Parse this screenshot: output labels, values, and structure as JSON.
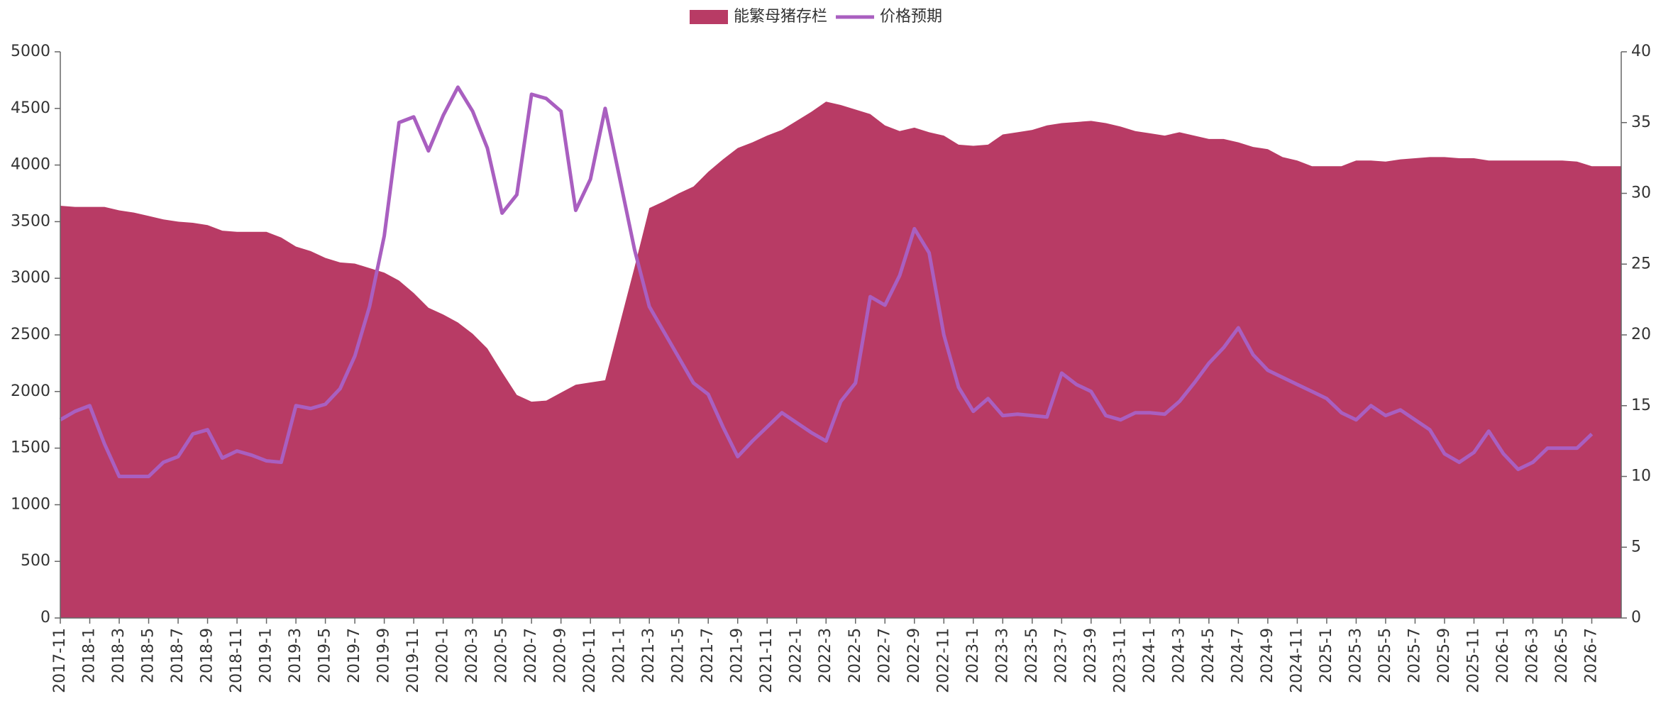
{
  "chart_data": {
    "type": "area",
    "categories": [
      "2017-11",
      null,
      "2018-1",
      null,
      "2018-3",
      null,
      "2018-5",
      null,
      "2018-7",
      null,
      "2018-9",
      null,
      "2018-11",
      null,
      "2019-1",
      null,
      "2019-3",
      null,
      "2019-5",
      null,
      "2019-7",
      null,
      "2019-9",
      null,
      "2019-11",
      null,
      "2020-1",
      null,
      "2020-3",
      null,
      "2020-5",
      null,
      "2020-7",
      null,
      "2020-9",
      null,
      "2020-11",
      null,
      "2021-1",
      null,
      "2021-3",
      null,
      "2021-5",
      null,
      "2021-7",
      null,
      "2021-9",
      null,
      "2021-11",
      null,
      "2022-1",
      null,
      "2022-3",
      null,
      "2022-5",
      null,
      "2022-7",
      null,
      "2022-9",
      null,
      "2022-11",
      null,
      "2023-1",
      null,
      "2023-3",
      null,
      "2023-5",
      null,
      "2023-7",
      null,
      "2023-9",
      null,
      "2023-11",
      null,
      "2024-1",
      null,
      "2024-3",
      null,
      "2024-5",
      null,
      "2024-7",
      null,
      "2024-9",
      null,
      "2024-11",
      null,
      "2025-1",
      null,
      "2025-3",
      null,
      "2025-5",
      null,
      "2025-7",
      null,
      "2025-9",
      null,
      "2025-11",
      null,
      "2026-1",
      null,
      "2026-3",
      null,
      "2026-5",
      null,
      "2026-7",
      null,
      null
    ],
    "series": [
      {
        "name": "能繁母猪存栏",
        "type": "area",
        "color": "#b83b65",
        "values": [
          3640,
          3630,
          3630,
          3630,
          3600,
          3580,
          3550,
          3520,
          3500,
          3490,
          3470,
          3420,
          3410,
          3410,
          3410,
          3360,
          3280,
          3240,
          3180,
          3140,
          3130,
          3090,
          3050,
          2980,
          2870,
          2740,
          2680,
          2610,
          2510,
          2380,
          2170,
          1970,
          1910,
          1920,
          1990,
          2060,
          2080,
          2100,
          2600,
          3100,
          3620,
          3680,
          3750,
          3810,
          3940,
          4050,
          4150,
          4200,
          4260,
          4310,
          4390,
          4470,
          4560,
          4530,
          4490,
          4450,
          4350,
          4300,
          4330,
          4290,
          4260,
          4180,
          4170,
          4180,
          4270,
          4290,
          4310,
          4350,
          4370,
          4380,
          4390,
          4370,
          4340,
          4300,
          4280,
          4260,
          4290,
          4260,
          4230,
          4230,
          4200,
          4160,
          4140,
          4070,
          4040,
          3990,
          3990,
          3990,
          4040,
          4040,
          4030,
          4050,
          4060,
          4070,
          4070,
          4060,
          4060,
          4040,
          4040,
          4040,
          4040,
          4040,
          4040,
          4030,
          3990,
          3990,
          3990
        ]
      },
      {
        "name": "价格预期",
        "type": "line",
        "axis": "y2",
        "color": "#a95fc0",
        "values": [
          14,
          14.6,
          15,
          12.3,
          10,
          10,
          10,
          11,
          11.4,
          13,
          13.3,
          11.3,
          11.8,
          11.5,
          11.1,
          11,
          15,
          14.8,
          15.1,
          16.2,
          18.5,
          22,
          27,
          35,
          35.4,
          33,
          35.5,
          37.5,
          35.8,
          33.2,
          28.6,
          29.9,
          37,
          36.7,
          35.8,
          28.8,
          31,
          36,
          31,
          26,
          22,
          20.2,
          18.4,
          16.6,
          15.8,
          13.5,
          11.4,
          12.5,
          13.5,
          14.5,
          13.8,
          13.1,
          12.5,
          15.3,
          16.6,
          22.7,
          22.1,
          24.2,
          27.5,
          25.8,
          20,
          16.3,
          14.6,
          15.5,
          14.3,
          14.4,
          14.3,
          14.2,
          17.3,
          16.5,
          16,
          14.3,
          14,
          14.5,
          14.5,
          14.4,
          15.3,
          16.6,
          18,
          19.1,
          20.5,
          18.6,
          17.5,
          17,
          16.5,
          16,
          15.5,
          14.5,
          14,
          15,
          14.3,
          14.7,
          14,
          13.3,
          11.6,
          11,
          11.7,
          13.2,
          11.6,
          10.5,
          11,
          12,
          12,
          12,
          13,
          null,
          null
        ]
      }
    ],
    "ylim": [
      0,
      5000
    ],
    "yticks": [
      0,
      500,
      1000,
      1500,
      2000,
      2500,
      3000,
      3500,
      4000,
      4500,
      5000
    ],
    "y2lim": [
      0,
      40
    ],
    "y2ticks": [
      0,
      5,
      10,
      15,
      20,
      25,
      30,
      35,
      40
    ],
    "grid": false,
    "legend": "top"
  }
}
